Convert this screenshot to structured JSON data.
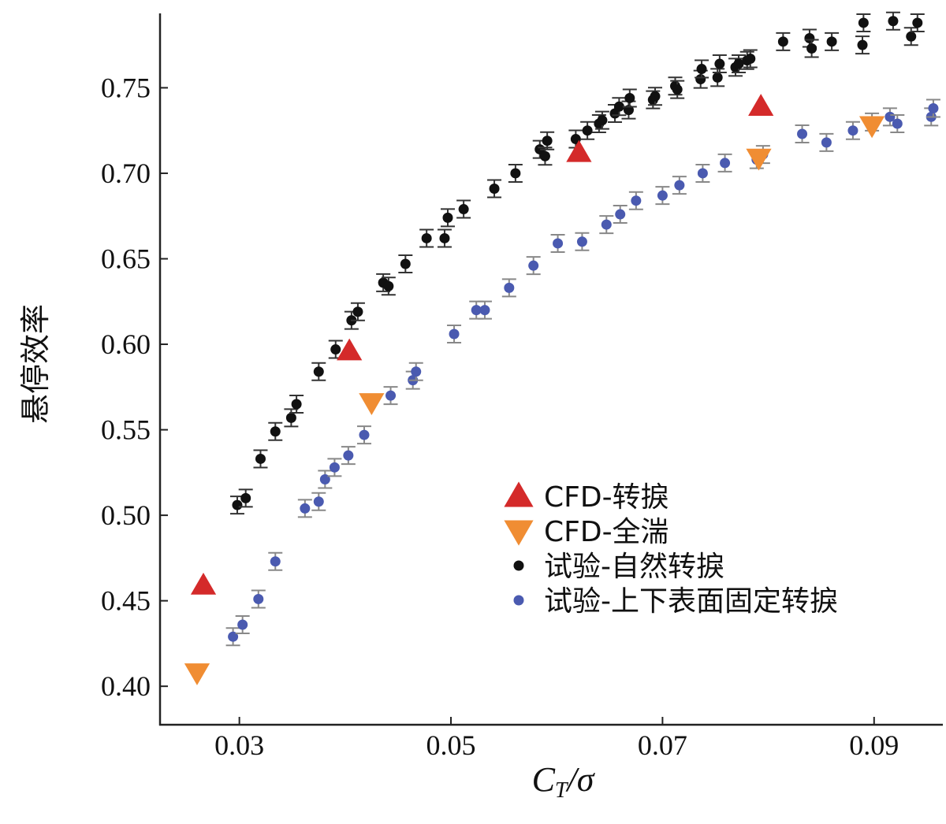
{
  "chart_data": {
    "type": "scatter",
    "xlabel": "C_T/σ",
    "ylabel": "悬停效率",
    "xlim": [
      0.0225,
      0.0965
    ],
    "ylim": [
      0.3775,
      0.7935
    ],
    "xticks": [
      "0.03",
      "0.05",
      "0.07",
      "0.09"
    ],
    "xtick_values": [
      0.03,
      0.05,
      0.07,
      0.09
    ],
    "yticks": [
      "0.40",
      "0.45",
      "0.50",
      "0.55",
      "0.60",
      "0.65",
      "0.70",
      "0.75"
    ],
    "ytick_values": [
      0.4,
      0.45,
      0.5,
      0.55,
      0.6,
      0.65,
      0.7,
      0.75
    ],
    "grid": false,
    "legend_position": "lower-right",
    "series": [
      {
        "name": "CFD-转捩",
        "marker": "triangle-up",
        "color": "#d42a2a",
        "error_bars": false,
        "x": [
          0.0266,
          0.0404,
          0.0621,
          0.0793
        ],
        "y": [
          0.459,
          0.596,
          0.712,
          0.739
        ]
      },
      {
        "name": "CFD-全湍",
        "marker": "triangle-down",
        "color": "#f08d33",
        "error_bars": false,
        "x": [
          0.026,
          0.0425,
          0.0791,
          0.0898
        ],
        "y": [
          0.408,
          0.566,
          0.709,
          0.728
        ]
      },
      {
        "name": "试验-自然转捩",
        "marker": "circle",
        "color": "#111111",
        "error_bars": true,
        "x": [
          0.0298,
          0.0306,
          0.032,
          0.0334,
          0.0349,
          0.0354,
          0.0375,
          0.0391,
          0.0406,
          0.0412,
          0.0436,
          0.0441,
          0.0457,
          0.0477,
          0.0494,
          0.0497,
          0.0512,
          0.0541,
          0.0561,
          0.0584,
          0.0589,
          0.0591,
          0.0618,
          0.0629,
          0.064,
          0.0643,
          0.0655,
          0.0659,
          0.0668,
          0.0669,
          0.0691,
          0.0693,
          0.0712,
          0.0714,
          0.0736,
          0.0737,
          0.0752,
          0.0754,
          0.0769,
          0.0772,
          0.078,
          0.0783,
          0.0814,
          0.0839,
          0.0841,
          0.086,
          0.0889,
          0.089,
          0.0918,
          0.0935,
          0.0941
        ],
        "y": [
          0.506,
          0.51,
          0.533,
          0.549,
          0.557,
          0.565,
          0.584,
          0.597,
          0.614,
          0.619,
          0.636,
          0.634,
          0.647,
          0.662,
          0.662,
          0.674,
          0.679,
          0.691,
          0.7,
          0.714,
          0.71,
          0.719,
          0.72,
          0.725,
          0.729,
          0.731,
          0.735,
          0.739,
          0.737,
          0.744,
          0.743,
          0.745,
          0.751,
          0.749,
          0.755,
          0.761,
          0.756,
          0.764,
          0.762,
          0.764,
          0.766,
          0.767,
          0.777,
          0.779,
          0.773,
          0.777,
          0.775,
          0.788,
          0.789,
          0.78,
          0.788
        ]
      },
      {
        "name": "试验-上下表面固定转捩",
        "marker": "circle",
        "color": "#4a5ab0",
        "error_bars": true,
        "x": [
          0.0294,
          0.0303,
          0.0318,
          0.0334,
          0.0362,
          0.0375,
          0.0381,
          0.039,
          0.0403,
          0.0418,
          0.0443,
          0.0464,
          0.0467,
          0.0503,
          0.0524,
          0.0532,
          0.0555,
          0.0578,
          0.0601,
          0.0624,
          0.0647,
          0.066,
          0.0675,
          0.07,
          0.0716,
          0.0738,
          0.0759,
          0.0789,
          0.0795,
          0.0832,
          0.0855,
          0.088,
          0.0898,
          0.0915,
          0.0922,
          0.0954,
          0.0956
        ],
        "y": [
          0.429,
          0.436,
          0.451,
          0.473,
          0.504,
          0.508,
          0.521,
          0.528,
          0.535,
          0.547,
          0.57,
          0.579,
          0.584,
          0.606,
          0.62,
          0.62,
          0.633,
          0.646,
          0.659,
          0.66,
          0.67,
          0.676,
          0.684,
          0.687,
          0.693,
          0.7,
          0.706,
          0.708,
          0.711,
          0.723,
          0.718,
          0.725,
          0.73,
          0.733,
          0.729,
          0.733,
          0.738
        ]
      }
    ]
  }
}
